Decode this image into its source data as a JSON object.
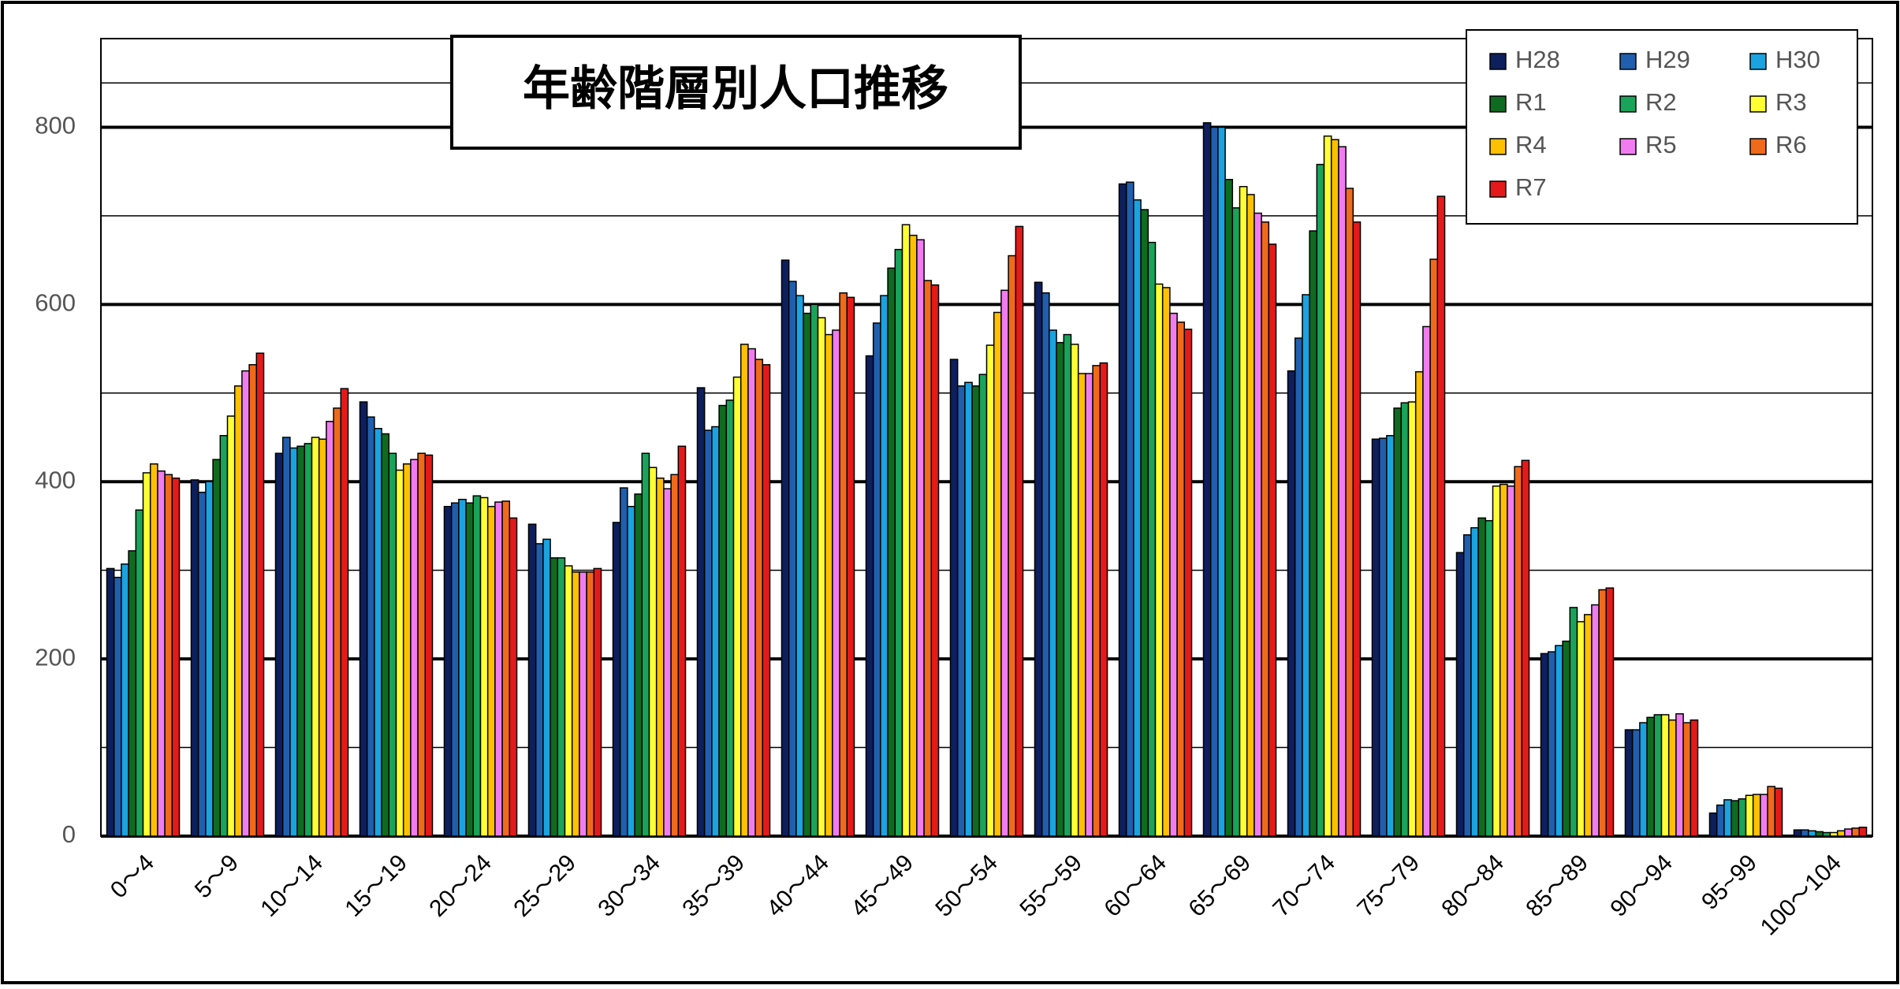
{
  "chart_data": {
    "type": "bar",
    "title": "年齢階層別人口推移",
    "categories": [
      "0～4",
      "5～9",
      "10～14",
      "15～19",
      "20～24",
      "25～29",
      "30～34",
      "35～39",
      "40～44",
      "45～49",
      "50～54",
      "55～59",
      "60～64",
      "65～69",
      "70～74",
      "75～79",
      "80～84",
      "85～89",
      "90～94",
      "95~99",
      "100～104"
    ],
    "series": [
      {
        "name": "H28",
        "color": "#0d1f5c",
        "values": [
          302,
          402,
          432,
          490,
          372,
          352,
          354,
          506,
          650,
          542,
          538,
          625,
          736,
          805,
          525,
          448,
          320,
          206,
          120,
          26,
          7
        ]
      },
      {
        "name": "H29",
        "color": "#1f5fad",
        "values": [
          292,
          388,
          450,
          473,
          376,
          330,
          393,
          458,
          626,
          579,
          508,
          613,
          738,
          800,
          562,
          449,
          340,
          208,
          120,
          35,
          7
        ]
      },
      {
        "name": "H30",
        "color": "#1aa3e0",
        "values": [
          307,
          400,
          438,
          460,
          380,
          335,
          372,
          462,
          610,
          610,
          512,
          571,
          718,
          800,
          611,
          452,
          348,
          215,
          128,
          41,
          6
        ]
      },
      {
        "name": "R1",
        "color": "#0f6b1f",
        "values": [
          322,
          425,
          440,
          454,
          376,
          314,
          386,
          486,
          590,
          641,
          508,
          557,
          707,
          741,
          683,
          483,
          359,
          220,
          134,
          40,
          5
        ]
      },
      {
        "name": "R2",
        "color": "#1aa35a",
        "values": [
          368,
          452,
          443,
          432,
          384,
          314,
          432,
          492,
          600,
          662,
          521,
          566,
          670,
          709,
          758,
          489,
          356,
          258,
          137,
          42,
          4
        ]
      },
      {
        "name": "R3",
        "color": "#ffff33",
        "values": [
          410,
          474,
          450,
          413,
          382,
          305,
          416,
          518,
          585,
          690,
          554,
          555,
          623,
          733,
          790,
          490,
          395,
          242,
          137,
          46,
          4
        ]
      },
      {
        "name": "R4",
        "color": "#ffc000",
        "values": [
          420,
          508,
          448,
          420,
          372,
          298,
          404,
          555,
          566,
          678,
          591,
          522,
          619,
          724,
          786,
          524,
          397,
          250,
          131,
          47,
          6
        ]
      },
      {
        "name": "R5",
        "color": "#f07cf0",
        "values": [
          412,
          525,
          468,
          425,
          377,
          298,
          392,
          550,
          571,
          673,
          616,
          522,
          590,
          703,
          778,
          575,
          395,
          261,
          138,
          47,
          8
        ]
      },
      {
        "name": "R6",
        "color": "#f06a1a",
        "values": [
          408,
          532,
          483,
          432,
          378,
          298,
          408,
          538,
          613,
          627,
          655,
          531,
          580,
          693,
          731,
          651,
          417,
          278,
          128,
          56,
          9
        ]
      },
      {
        "name": "R7",
        "color": "#e41a1a",
        "values": [
          404,
          545,
          505,
          430,
          359,
          302,
          440,
          532,
          608,
          622,
          688,
          534,
          572,
          668,
          693,
          722,
          424,
          280,
          131,
          54,
          10
        ]
      }
    ],
    "ylim": [
      0,
      900
    ],
    "yticks": [
      0,
      200,
      400,
      600,
      800
    ],
    "grid": true,
    "minor_grid": true,
    "legend": "top-right"
  }
}
